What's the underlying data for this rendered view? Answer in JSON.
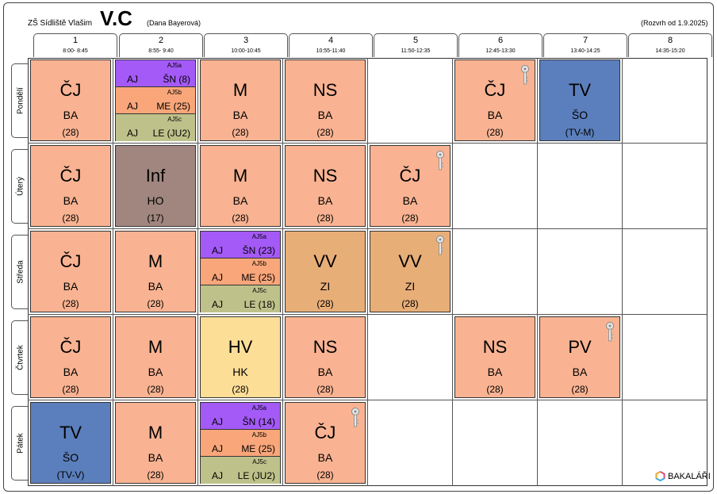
{
  "header": {
    "school": "ZŠ Sídliště Vlašim",
    "class": "V.C",
    "teacher": "(Dana Bayerová)",
    "valid_from": "(Rozvrh od 1.9.2025)"
  },
  "periods": [
    {
      "num": "1",
      "time": "8:00- 8:45"
    },
    {
      "num": "2",
      "time": "8:55- 9:40"
    },
    {
      "num": "3",
      "time": "10:00-10:45"
    },
    {
      "num": "4",
      "time": "10:55-11:40"
    },
    {
      "num": "5",
      "time": "11:50-12:35"
    },
    {
      "num": "6",
      "time": "12:45-13:30"
    },
    {
      "num": "7",
      "time": "13:40-14:25"
    },
    {
      "num": "8",
      "time": "14:35-15:20"
    }
  ],
  "days": [
    "Pondělí",
    "Úterý",
    "Středa",
    "Čtvrtek",
    "Pátek"
  ],
  "lessons": {
    "mon_p1": {
      "subject": "ČJ",
      "teacher": "BA",
      "room": "(28)"
    },
    "mon_p3": {
      "subject": "M",
      "teacher": "BA",
      "room": "(28)"
    },
    "mon_p4": {
      "subject": "NS",
      "teacher": "BA",
      "room": "(28)"
    },
    "mon_p6": {
      "subject": "ČJ",
      "teacher": "BA",
      "room": "(28)"
    },
    "mon_p7": {
      "subject": "TV",
      "teacher": "ŠO",
      "room": "(TV-M)"
    },
    "tue_p1": {
      "subject": "ČJ",
      "teacher": "BA",
      "room": "(28)"
    },
    "tue_p2": {
      "subject": "Inf",
      "teacher": "HO",
      "room": "(17)"
    },
    "tue_p3": {
      "subject": "M",
      "teacher": "BA",
      "room": "(28)"
    },
    "tue_p4": {
      "subject": "NS",
      "teacher": "BA",
      "room": "(28)"
    },
    "tue_p5": {
      "subject": "ČJ",
      "teacher": "BA",
      "room": "(28)"
    },
    "wed_p1": {
      "subject": "ČJ",
      "teacher": "BA",
      "room": "(28)"
    },
    "wed_p2": {
      "subject": "M",
      "teacher": "BA",
      "room": "(28)"
    },
    "wed_p4": {
      "subject": "VV",
      "teacher": "ZI",
      "room": "(28)"
    },
    "wed_p5": {
      "subject": "VV",
      "teacher": "ZI",
      "room": "(28)"
    },
    "thu_p1": {
      "subject": "ČJ",
      "teacher": "BA",
      "room": "(28)"
    },
    "thu_p2": {
      "subject": "M",
      "teacher": "BA",
      "room": "(28)"
    },
    "thu_p3": {
      "subject": "HV",
      "teacher": "HK",
      "room": "(28)"
    },
    "thu_p4": {
      "subject": "NS",
      "teacher": "BA",
      "room": "(28)"
    },
    "thu_p6": {
      "subject": "NS",
      "teacher": "BA",
      "room": "(28)"
    },
    "thu_p7": {
      "subject": "PV",
      "teacher": "BA",
      "room": "(28)"
    },
    "fri_p1": {
      "subject": "TV",
      "teacher": "ŠO",
      "room": "(TV-V)"
    },
    "fri_p2": {
      "subject": "M",
      "teacher": "BA",
      "room": "(28)"
    },
    "fri_p4": {
      "subject": "ČJ",
      "teacher": "BA",
      "room": "(28)"
    }
  },
  "split_lessons": {
    "mon_p2": [
      {
        "group": "AJ5a",
        "subject": "AJ",
        "detail": "ŠN   (8)"
      },
      {
        "group": "AJ5b",
        "subject": "AJ",
        "detail": "ME  (25)"
      },
      {
        "group": "AJ5c",
        "subject": "AJ",
        "detail": "LE  (JU2)"
      }
    ],
    "wed_p3": [
      {
        "group": "AJ5a",
        "subject": "AJ",
        "detail": "ŠN  (23)"
      },
      {
        "group": "AJ5b",
        "subject": "AJ",
        "detail": "ME  (25)"
      },
      {
        "group": "AJ5c",
        "subject": "AJ",
        "detail": "LE  (18)"
      }
    ],
    "fri_p3": [
      {
        "group": "AJ5a",
        "subject": "AJ",
        "detail": "ŠN  (14)"
      },
      {
        "group": "AJ5b",
        "subject": "AJ",
        "detail": "ME  (25)"
      },
      {
        "group": "AJ5c",
        "subject": "AJ",
        "detail": "LE  (JU2)"
      }
    ]
  },
  "colors": {
    "salmon": "#F9B392",
    "pe_blue": "#5B7FBC",
    "inf_mauve": "#A0867F",
    "music_yellow": "#FDDE97",
    "art_tan": "#E8AE78",
    "group_a": "#A45AF7",
    "group_b": "#F9A67A",
    "group_c": "#BEC28A"
  },
  "footer": {
    "brand": "BAKALÁŘI"
  }
}
